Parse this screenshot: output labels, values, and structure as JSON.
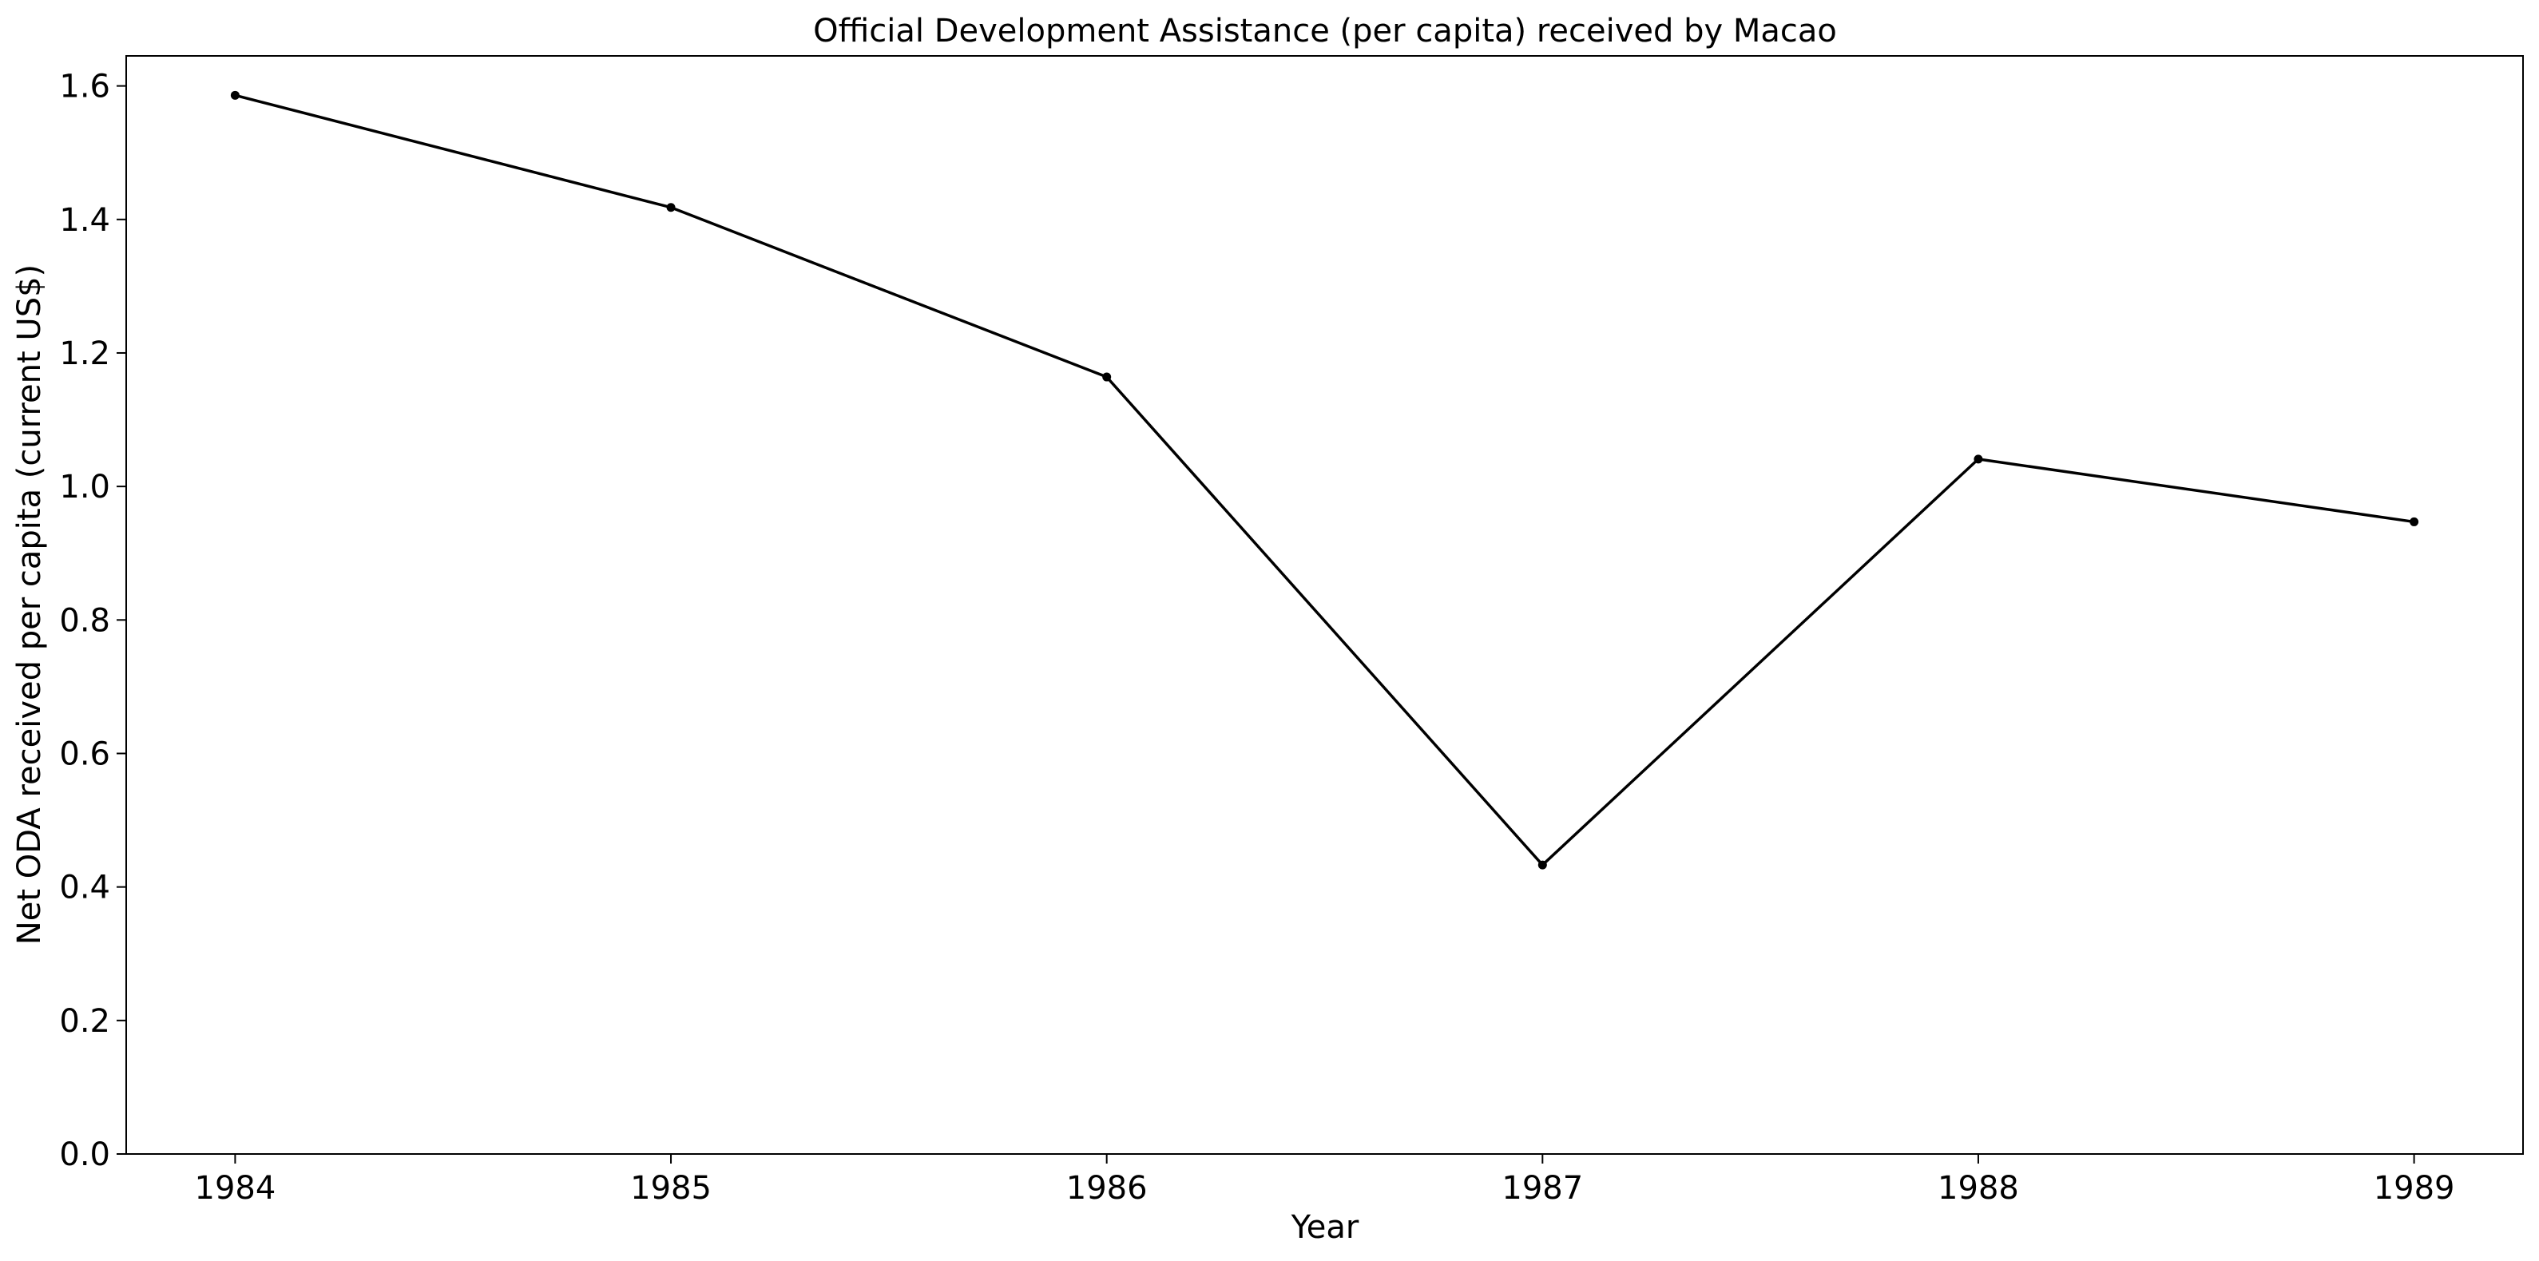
{
  "chart_data": {
    "type": "line",
    "title": "Official Development Assistance (per capita) received by Macao",
    "xlabel": "Year",
    "ylabel": "Net ODA received per capita (current US$)",
    "x": [
      "1984",
      "1985",
      "1986",
      "1987",
      "1988",
      "1989"
    ],
    "series": [
      {
        "values": [
          1.586,
          1.418,
          1.164,
          0.433,
          1.041,
          0.947
        ],
        "color": "#000000"
      }
    ],
    "xlim": [
      1983.75,
      1989.25
    ],
    "ylim": [
      0,
      1.645
    ],
    "yticks": [
      0.0,
      0.2,
      0.4,
      0.6,
      0.8,
      1.0,
      1.2,
      1.4,
      1.6
    ],
    "ytick_labels": [
      "0.0",
      "0.2",
      "0.4",
      "0.6",
      "0.8",
      "1.0",
      "1.2",
      "1.4",
      "1.6"
    ],
    "grid": false,
    "legend": "none"
  }
}
